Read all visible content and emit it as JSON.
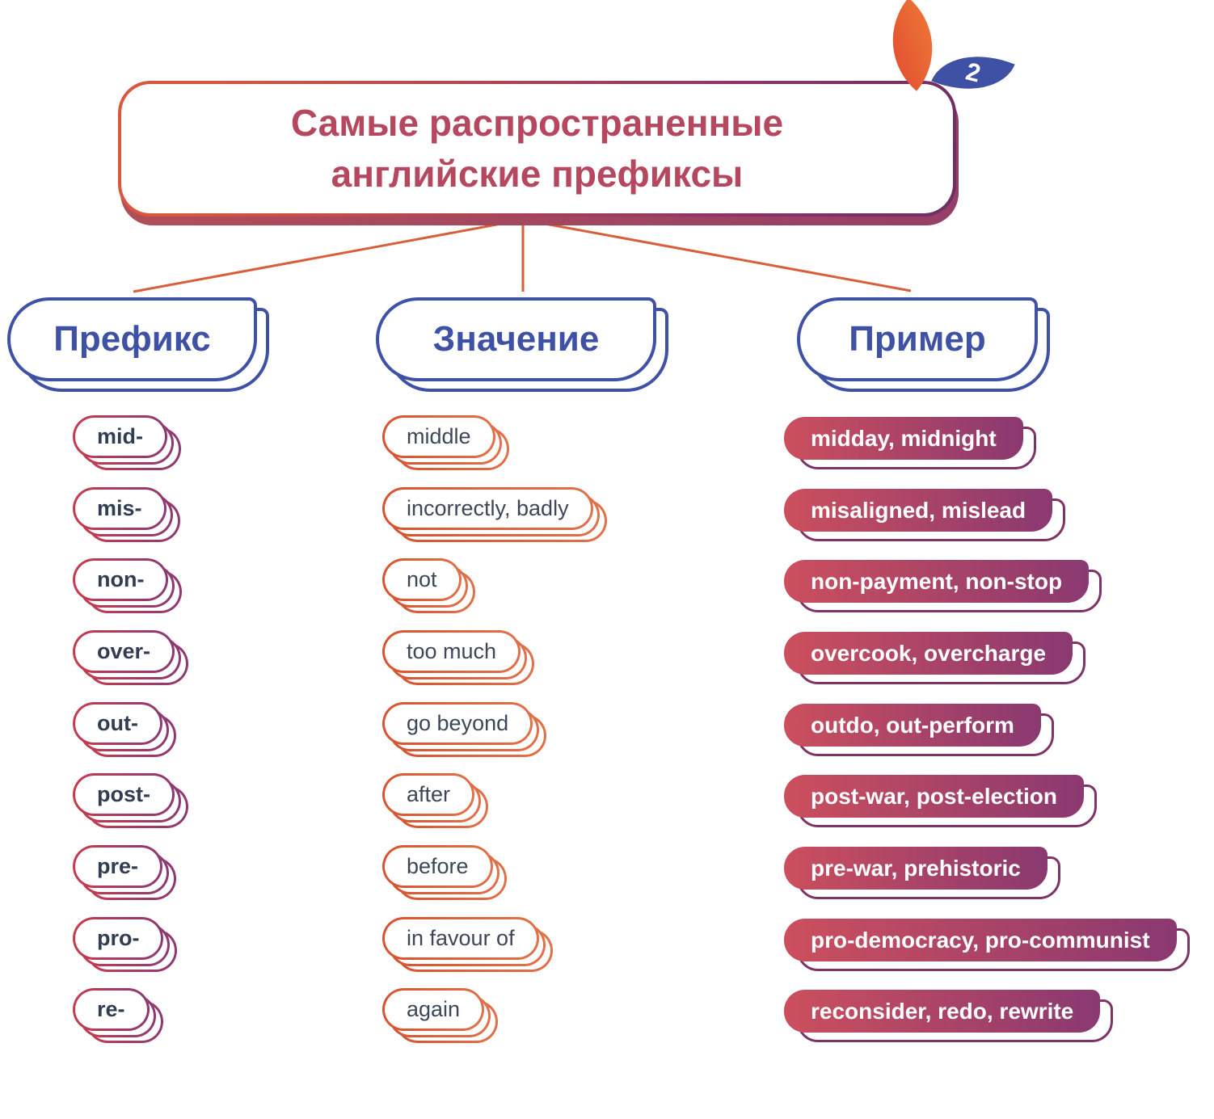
{
  "badge": {
    "number": "2"
  },
  "title": {
    "line1": "Самые распространенные",
    "line2": "английские префиксы"
  },
  "columns": [
    {
      "label": "Префикс"
    },
    {
      "label": "Значение"
    },
    {
      "label": "Пример"
    }
  ],
  "rows": [
    {
      "prefix": "mid-",
      "meaning": "middle",
      "example": "midday, midnight"
    },
    {
      "prefix": "mis-",
      "meaning": "incorrectly, badly",
      "example": "misaligned, mislead"
    },
    {
      "prefix": "non-",
      "meaning": "not",
      "example": "non-payment, non-stop"
    },
    {
      "prefix": "over-",
      "meaning": "too much",
      "example": "overcook, overcharge"
    },
    {
      "prefix": "out-",
      "meaning": "go beyond",
      "example": "outdo, out-perform"
    },
    {
      "prefix": "post-",
      "meaning": "after",
      "example": "post-war, post-election"
    },
    {
      "prefix": "pre-",
      "meaning": "before",
      "example": "pre-war, prehistoric"
    },
    {
      "prefix": "pro-",
      "meaning": "in favour of",
      "example": "pro-democracy, pro-communist"
    },
    {
      "prefix": "re-",
      "meaning": "again",
      "example": "reconsider, redo, rewrite"
    }
  ],
  "icons": {
    "leaf_orange": "leaf-orange-petal-icon",
    "leaf_blue": "leaf-blue-petal-icon"
  },
  "colors": {
    "title_text": "#b5485e",
    "title_border_from": "#d8573e",
    "title_border_to": "#6f2d63",
    "title_shadow": "#9e4067",
    "header_blue": "#3f51a5",
    "connector_orange": "#d85f3c",
    "prefix_border_from": "#c73b4e",
    "prefix_border_to": "#8c3a72",
    "prefix_text": "#313d52",
    "meaning_border": "#dd6038",
    "meaning_text": "#3c4759",
    "example_fill_from": "#cc4f5d",
    "example_fill_to": "#8a3971",
    "example_echo_border": "#7d3366",
    "example_text": "#ffffff",
    "leaf_orange": "#e8553a",
    "leaf_blue": "#3f51a5",
    "background": "#ffffff"
  }
}
